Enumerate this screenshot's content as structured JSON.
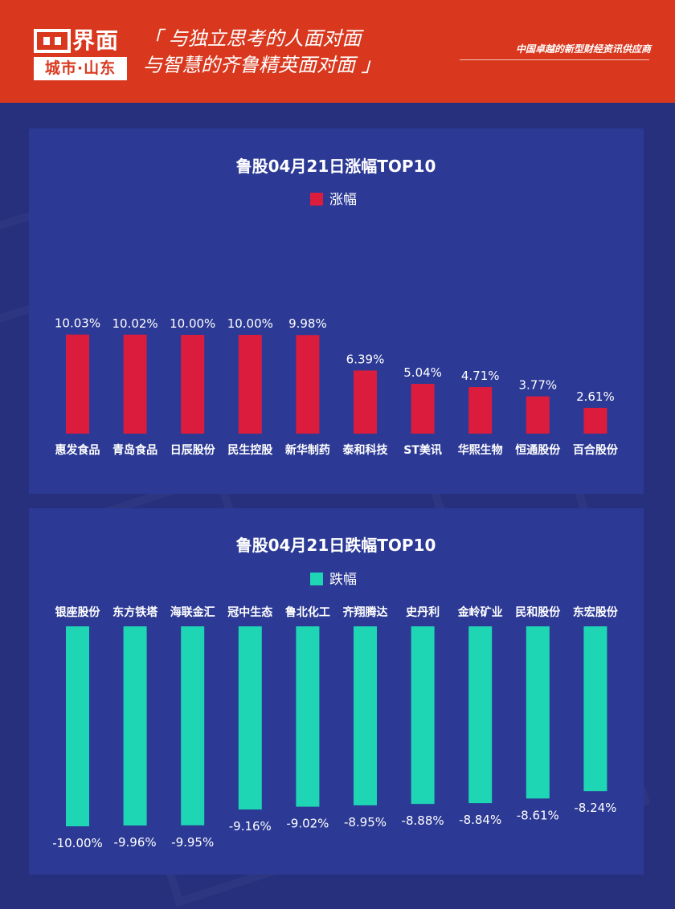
{
  "header": {
    "logo_name": "界面",
    "logo_sub": "城市·山东",
    "slogan_line1": "「 与独立思考的人面对面",
    "slogan_line2": "与智慧的齐鲁精英面对面 」",
    "tagline": "中国卓越的新型财经资讯供应商"
  },
  "colors": {
    "header_bg": "#d9381e",
    "page_bg": "#26307d",
    "panel_bg": "#2c3a95",
    "rise_bar": "#dc1c3c",
    "fall_bar": "#1fd6b4"
  },
  "chart_data": [
    {
      "type": "bar",
      "title": "鲁股04月21日涨幅TOP10",
      "legend": "涨幅",
      "categories": [
        "惠发食品",
        "青岛食品",
        "日辰股份",
        "民生控股",
        "新华制药",
        "泰和科技",
        "ST美讯",
        "华熙生物",
        "恒通股份",
        "百合股份"
      ],
      "series": [
        {
          "name": "涨幅",
          "values": [
            10.03,
            10.02,
            10.0,
            10.0,
            9.98,
            6.39,
            5.04,
            4.71,
            3.77,
            2.61
          ]
        }
      ],
      "labels": [
        "10.03%",
        "10.02%",
        "10.00%",
        "10.00%",
        "9.98%",
        "6.39%",
        "5.04%",
        "4.71%",
        "3.77%",
        "2.61%"
      ],
      "ylim": [
        0,
        12
      ],
      "grid": false,
      "legend_position": "top-center"
    },
    {
      "type": "bar",
      "title": "鲁股04月21日跌幅TOP10",
      "legend": "跌幅",
      "categories": [
        "银座股份",
        "东方铁塔",
        "海联金汇",
        "冠中生态",
        "鲁北化工",
        "齐翔腾达",
        "史丹利",
        "金岭矿业",
        "民和股份",
        "东宏股份"
      ],
      "series": [
        {
          "name": "跌幅",
          "values": [
            -10.0,
            -9.96,
            -9.95,
            -9.16,
            -9.02,
            -8.95,
            -8.88,
            -8.84,
            -8.61,
            -8.24
          ]
        }
      ],
      "labels": [
        "-10.00%",
        "-9.96%",
        "-9.95%",
        "-9.16%",
        "-9.02%",
        "-8.95%",
        "-8.88%",
        "-8.84%",
        "-8.61%",
        "-8.24%"
      ],
      "ylim": [
        -10,
        0
      ],
      "grid": false,
      "legend_position": "top-center"
    }
  ]
}
